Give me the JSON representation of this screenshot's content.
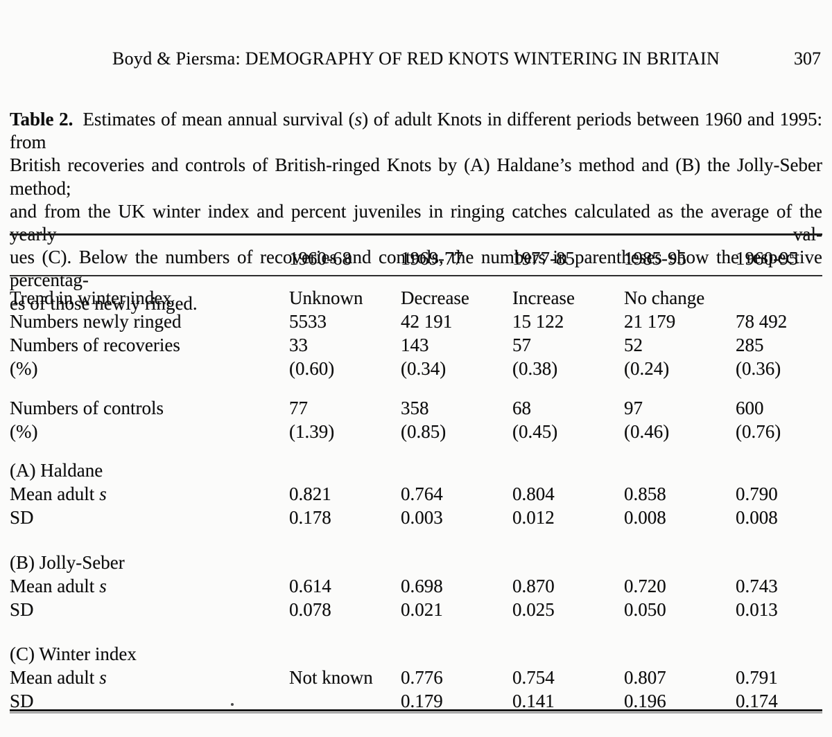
{
  "colors": {
    "paper": "#fbfbfa",
    "ink": "#0d0d0d",
    "rule_dark": "#1c1c1c",
    "rule_gray": "#9b9b9b"
  },
  "header": {
    "running_title": "Boyd & Piersma: DEMOGRAPHY OF RED KNOTS WINTERING IN BRITAIN",
    "page_number": "307"
  },
  "caption": {
    "lines": [
      [
        {
          "text": "Table 2.",
          "style": "bold"
        },
        {
          "text": "Estimates of mean annual survival (",
          "style": "normal"
        },
        {
          "text": "s",
          "style": "italic"
        },
        {
          "text": ") of adult Knots in different periods between 1960 and 1995: from",
          "style": "normal"
        }
      ],
      [
        {
          "text": "British recoveries and controls of British-ringed Knots by (A) Haldane’s method and (B) the Jolly-Seber method;",
          "style": "normal"
        }
      ],
      [
        {
          "text": "and from the UK winter index and percent juveniles in ringing catches calculated as the average of the yearly val-",
          "style": "normal"
        }
      ],
      [
        {
          "text": "ues (C). Below the numbers of recoveries and controls, the numbers in parentheses show the respective percentag-",
          "style": "normal"
        }
      ],
      [
        {
          "text": "es of those newly ringed.",
          "style": "normal"
        }
      ]
    ]
  },
  "table": {
    "columns": [
      "1960-68",
      "1969-77",
      "1977-85",
      "1985-95",
      "1960-95"
    ],
    "rows": [
      {
        "label": "Trend in winter index",
        "values": [
          "Unknown",
          "Decrease",
          "Increase",
          "No change",
          ""
        ]
      },
      {
        "label": "Numbers newly ringed",
        "values": [
          "5533",
          "42 191",
          "15 122",
          "21 179",
          "78 492"
        ]
      },
      {
        "label": "Numbers of recoveries",
        "values": [
          "33",
          "143",
          "57",
          "52",
          "285"
        ]
      },
      {
        "label": "(%)",
        "values": [
          "(0.60)",
          "(0.34)",
          "(0.38)",
          "(0.24)",
          "(0.36)"
        ]
      },
      {
        "label": "Numbers of controls",
        "values": [
          "77",
          "358",
          "68",
          "97",
          "600"
        ]
      },
      {
        "label": "(%)",
        "values": [
          "(1.39)",
          "(0.85)",
          "(0.45)",
          "(0.46)",
          "(0.76)"
        ]
      },
      {
        "label": "(A) Haldane",
        "values": [
          "",
          "",
          "",
          "",
          ""
        ]
      },
      {
        "label": "Mean adult",
        "label_italic": "s",
        "values": [
          "0.821",
          "0.764",
          "0.804",
          "0.858",
          "0.790"
        ]
      },
      {
        "label": "SD",
        "values": [
          "0.178",
          "0.003",
          "0.012",
          "0.008",
          "0.008"
        ]
      },
      {
        "label": "(B) Jolly-Seber",
        "values": [
          "",
          "",
          "",
          "",
          ""
        ]
      },
      {
        "label": "Mean adult",
        "label_italic": "s",
        "values": [
          "0.614",
          "0.698",
          "0.870",
          "0.720",
          "0.743"
        ]
      },
      {
        "label": "SD",
        "values": [
          "0.078",
          "0.021",
          "0.025",
          "0.050",
          "0.013"
        ]
      },
      {
        "label": "(C) Winter index",
        "values": [
          "",
          "",
          "",
          "",
          ""
        ]
      },
      {
        "label": "Mean adult",
        "label_italic": "s",
        "values": [
          "Not known",
          "0.776",
          "0.754",
          "0.807",
          "0.791"
        ]
      },
      {
        "label": "SD",
        "values": [
          "",
          "0.179",
          "0.141",
          "0.196",
          "0.174"
        ]
      }
    ]
  }
}
